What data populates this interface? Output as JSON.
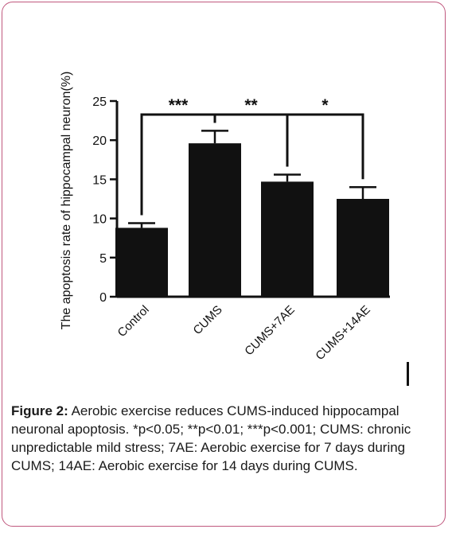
{
  "chart_data": {
    "type": "bar",
    "categories": [
      "Control",
      "CUMS",
      "CUMS+7AE",
      "CUMS+14AE"
    ],
    "values": [
      8.8,
      19.6,
      14.7,
      12.5
    ],
    "errors": [
      0.6,
      1.6,
      0.9,
      1.5
    ],
    "ylabel": "The apoptosis rate of hippocampal neuron(%)",
    "ylim": [
      0,
      25
    ],
    "yticks": [
      0,
      5,
      10,
      15,
      20,
      25
    ],
    "bar_color": "#111111",
    "significance": [
      {
        "from": "Control",
        "to": "CUMS",
        "label": "***"
      },
      {
        "from": "CUMS",
        "to": "CUMS+7AE",
        "label": "**"
      },
      {
        "from": "CUMS+7AE",
        "to": "CUMS+14AE",
        "label": "*"
      }
    ]
  },
  "caption": {
    "lead": "Figure 2:",
    "text": " Aerobic exercise reduces CUMS-induced hippocampal neuronal apoptosis. *p<0.05; **p<0.01; ***p<0.001; CUMS: chronic unpredictable mild stress; 7AE: Aerobic exercise for 7 days during CUMS; 14AE: Aerobic exercise for 14 days during CUMS."
  },
  "colors": {
    "frame_border": "#c0587e"
  }
}
